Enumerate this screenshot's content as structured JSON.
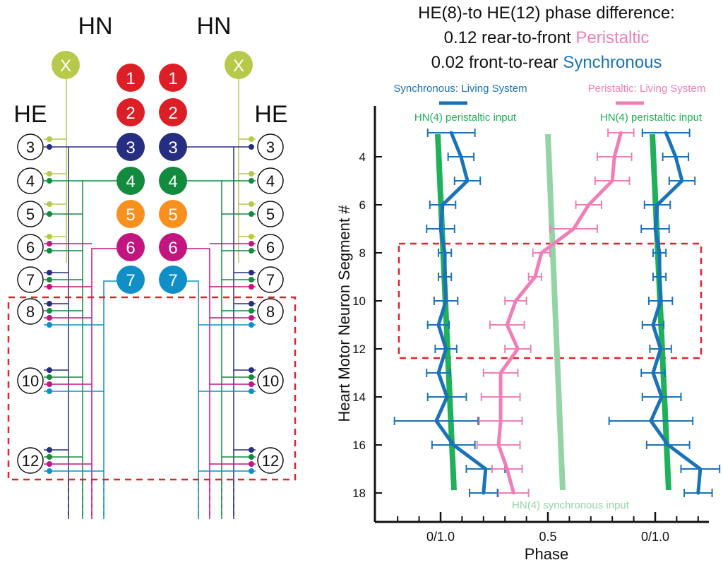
{
  "circuit": {
    "hn_label": "HN",
    "he_label": "HE",
    "x_label": "X",
    "hn_neurons": [
      {
        "label": "1",
        "color": "#dc1f26"
      },
      {
        "label": "2",
        "color": "#dc1f26"
      },
      {
        "label": "3",
        "color": "#262e82"
      },
      {
        "label": "4",
        "color": "#138a3e"
      },
      {
        "label": "5",
        "color": "#f7901e"
      },
      {
        "label": "6",
        "color": "#c2157f"
      },
      {
        "label": "7",
        "color": "#0f8fc6"
      }
    ],
    "he_neurons": [
      "3",
      "4",
      "5",
      "6",
      "7",
      "8",
      "10",
      "12"
    ],
    "x_color": "#b6c94a"
  },
  "header": {
    "line1": "HE(8)-to HE(12) phase difference:",
    "line2_prefix": "0.12 rear-to-front ",
    "line2_highlight": "Peristaltic",
    "line3_prefix": "0.02 front-to-rear ",
    "line3_highlight": "Synchronous"
  },
  "colors": {
    "synchronous": "#1a73b8",
    "peristaltic": "#ef7fb7",
    "hn_input": "#1fb05a",
    "hn_sync_input": "#93d3a6",
    "highlight_box": "#e3222a"
  },
  "chart_data": {
    "type": "line",
    "xlabel": "Phase",
    "ylabel": "Heart Motor Neuron Segment #",
    "x_ticks": [
      "0/1.0",
      "0.5",
      "0/1.0"
    ],
    "y_ticks": [
      "4",
      "6",
      "8",
      "10",
      "12",
      "14",
      "16",
      "18"
    ],
    "legend": [
      {
        "label": "Synchronous: Living System",
        "color": "#1a73b8"
      },
      {
        "label": "Peristaltic: Living System",
        "color": "#ef7fb7"
      }
    ],
    "annotations": {
      "hn_peristaltic_left": "HN(4) peristaltic input",
      "hn_peristaltic_right": "HN(4) peristaltic input",
      "hn_synchronous": "HN(4) synchronous input"
    },
    "segments": [
      3,
      4,
      5,
      6,
      7,
      8,
      9,
      10,
      11,
      12,
      13,
      14,
      15,
      16,
      17,
      18
    ],
    "series": [
      {
        "name": "Synchronous: Living System",
        "values": [
          0.05,
          0.095,
          0.125,
          0.01,
          0.0,
          0.02,
          0.02,
          0.025,
          -0.01,
          0.025,
          -0.01,
          0.03,
          -0.02,
          0.06,
          0.21,
          0.2
        ],
        "err": [
          0.11,
          0.06,
          0.06,
          0.06,
          0.065,
          0.03,
          0.03,
          0.055,
          0.05,
          0.05,
          0.055,
          0.09,
          0.195,
          0.1,
          0.09,
          0.065
        ]
      },
      {
        "name": "Peristaltic: Living System",
        "values": [
          0.84,
          0.81,
          0.8,
          0.69,
          0.62,
          0.47,
          0.44,
          0.35,
          0.31,
          0.36,
          0.28,
          0.28,
          0.28,
          0.27,
          0.31,
          0.34
        ],
        "err": [
          0.06,
          0.08,
          0.08,
          0.06,
          0.11,
          0.04,
          0.03,
          0.05,
          0.08,
          0.06,
          0.08,
          0.09,
          0.1,
          0.1,
          0.07,
          0.07
        ]
      }
    ]
  }
}
